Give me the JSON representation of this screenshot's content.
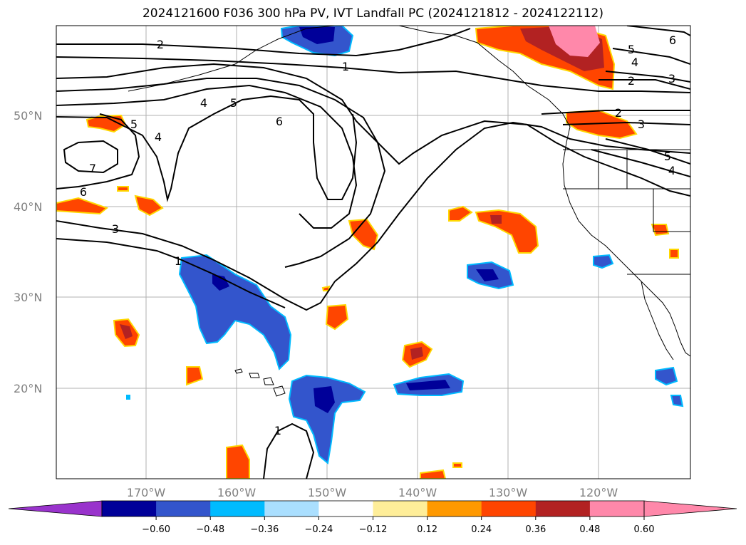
{
  "title": "2024121600 F036 300 hPa PV, IVT Landfall PC (2024121812 - 2024122112)",
  "map": {
    "lat_labels": [
      "50°N",
      "40°N",
      "30°N",
      "20°N"
    ],
    "lon_labels": [
      "170°W",
      "160°W",
      "150°W",
      "140°W",
      "130°W",
      "120°W"
    ],
    "contour_labels": [
      "2",
      "1",
      "4",
      "5",
      "6",
      "7",
      "6",
      "5",
      "4",
      "3",
      "1",
      "1",
      "6",
      "5",
      "4",
      "2",
      "3",
      "2",
      "3",
      "5",
      "4"
    ]
  },
  "colorbar": {
    "ticks": [
      "−0.60",
      "−0.48",
      "−0.36",
      "−0.24",
      "−0.12",
      "0.12",
      "0.24",
      "0.36",
      "0.48",
      "0.60"
    ],
    "colors": {
      "under": "#9933cc",
      "bins": [
        "#000099",
        "#3355cc",
        "#00bbff",
        "#aadfff",
        "#ffffff",
        "#ffee99",
        "#ff9900",
        "#ff4500",
        "#b22222",
        "#ff88aa"
      ],
      "over": "#ff88aa"
    }
  }
}
